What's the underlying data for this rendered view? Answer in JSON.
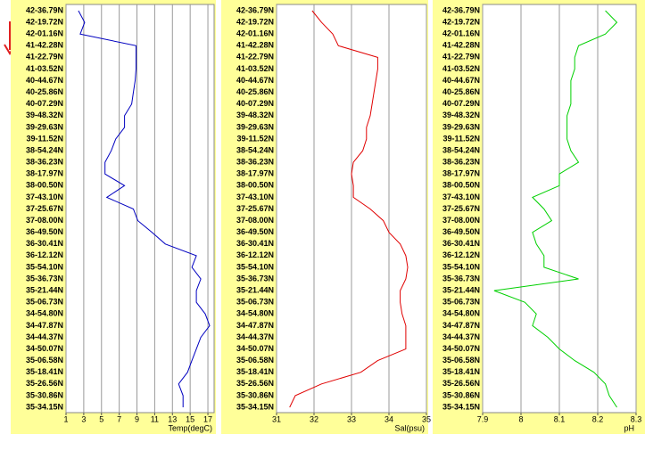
{
  "chart_data": [
    {
      "type": "line",
      "xlabel": "Temp(degC)",
      "color": "#0000c0",
      "categories": [
        "42-36.79N",
        "42-19.72N",
        "42-01.16N",
        "41-42.28N",
        "41-22.79N",
        "41-03.52N",
        "40-44.67N",
        "40-25.86N",
        "40-07.29N",
        "39-48.32N",
        "39-29.63N",
        "39-11.52N",
        "38-54.24N",
        "38-36.23N",
        "38-17.97N",
        "38-00.50N",
        "37-43.10N",
        "37-25.67N",
        "37-08.00N",
        "36-49.50N",
        "36-30.41N",
        "36-12.12N",
        "35-54.10N",
        "35-36.73N",
        "35-21.44N",
        "35-06.73N",
        "34-54.80N",
        "34-47.87N",
        "34-44.37N",
        "34-50.07N",
        "35-06.58N",
        "35-18.41N",
        "35-26.56N",
        "35-30.86N",
        "35-34.15N"
      ],
      "values": [
        2.4,
        3.1,
        2.6,
        8.9,
        8.9,
        8.9,
        8.8,
        8.6,
        8.4,
        7.6,
        7.6,
        6.6,
        6.1,
        5.4,
        5.4,
        7.6,
        5.6,
        8.6,
        9.1,
        10.7,
        12.2,
        15.7,
        15.2,
        16.2,
        15.7,
        15.7,
        16.7,
        17.2,
        16.2,
        15.7,
        15.2,
        14.7,
        13.7,
        14.2,
        14.2
      ],
      "xlim": [
        1,
        17.7
      ],
      "xticks": [
        1,
        3,
        5,
        7,
        9,
        11,
        13,
        15,
        17
      ],
      "grid": true
    },
    {
      "type": "line",
      "xlabel": "Sal(psu)",
      "color": "#e00000",
      "categories": [
        "42-36.79N",
        "42-19.72N",
        "42-01.16N",
        "41-42.28N",
        "41-22.79N",
        "41-03.52N",
        "40-44.67N",
        "40-25.86N",
        "40-07.29N",
        "39-48.32N",
        "39-29.63N",
        "39-11.52N",
        "38-54.24N",
        "38-36.23N",
        "38-17.97N",
        "38-00.50N",
        "37-43.10N",
        "37-25.67N",
        "37-08.00N",
        "36-49.50N",
        "36-30.41N",
        "36-12.12N",
        "35-54.10N",
        "35-36.73N",
        "35-21.44N",
        "35-06.73N",
        "34-54.80N",
        "34-47.87N",
        "34-44.37N",
        "34-50.07N",
        "35-06.58N",
        "35-18.41N",
        "35-26.56N",
        "35-30.86N",
        "35-34.15N"
      ],
      "values": [
        31.95,
        32.2,
        32.5,
        32.65,
        33.7,
        33.7,
        33.65,
        33.6,
        33.55,
        33.5,
        33.4,
        33.4,
        33.3,
        33.05,
        33.0,
        33.05,
        33.05,
        33.5,
        33.85,
        34.0,
        34.3,
        34.45,
        34.5,
        34.45,
        34.3,
        34.3,
        34.35,
        34.45,
        34.45,
        34.45,
        33.7,
        33.25,
        32.2,
        31.5,
        31.35
      ],
      "xlim": [
        31,
        35
      ],
      "xticks": [
        31,
        32,
        33,
        34,
        35
      ],
      "grid": true
    },
    {
      "type": "line",
      "xlabel": "pH",
      "color": "#00d000",
      "categories": [
        "42-36.79N",
        "42-19.72N",
        "42-01.16N",
        "41-42.28N",
        "41-22.79N",
        "41-03.52N",
        "40-44.67N",
        "40-25.86N",
        "40-07.29N",
        "39-48.32N",
        "39-29.63N",
        "39-11.52N",
        "38-54.24N",
        "38-36.23N",
        "38-17.97N",
        "38-00.50N",
        "37-43.10N",
        "37-25.67N",
        "37-08.00N",
        "36-49.50N",
        "36-30.41N",
        "36-12.12N",
        "35-54.10N",
        "35-36.73N",
        "35-21.44N",
        "35-06.73N",
        "34-54.80N",
        "34-47.87N",
        "34-44.37N",
        "34-50.07N",
        "35-06.58N",
        "35-18.41N",
        "35-26.56N",
        "35-30.86N",
        "35-34.15N"
      ],
      "values": [
        8.22,
        8.25,
        8.22,
        8.15,
        8.14,
        8.14,
        8.13,
        8.13,
        8.13,
        8.12,
        8.12,
        8.12,
        8.13,
        8.15,
        8.1,
        8.1,
        8.03,
        8.06,
        8.08,
        8.03,
        8.04,
        8.06,
        8.06,
        8.15,
        7.93,
        8.01,
        8.04,
        8.03,
        8.07,
        8.1,
        8.14,
        8.19,
        8.22,
        8.23,
        8.25
      ],
      "xlim": [
        7.9,
        8.3
      ],
      "xticks": [
        7.9,
        8,
        8.1,
        8.2,
        8.3
      ],
      "grid": true
    }
  ]
}
